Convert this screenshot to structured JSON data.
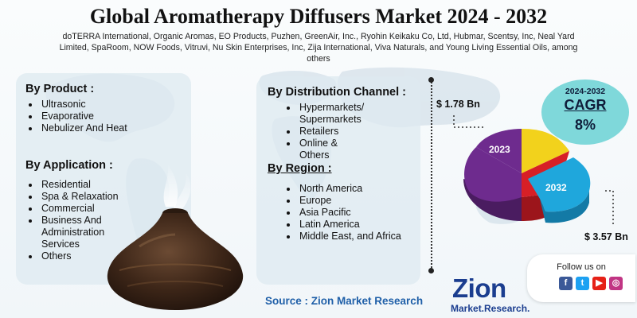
{
  "title": "Global Aromatherapy Diffusers Market 2024 - 2032",
  "key_players": "doTERRA International, Organic Aromas, EO Products, Puzhen, GreenAir, Inc., Ryohin Keikaku Co, Ltd, Hubmar, Scentsy, Inc, Neal Yard Limited, SpaRoom, NOW Foods, Vitruvi, Nu Skin Enterprises, Inc, Zija International, Viva Naturals, and Young Living Essential Oils, among others",
  "by_product": {
    "heading": "By Product :",
    "items": [
      "Ultrasonic",
      "Evaporative",
      "Nebulizer And Heat"
    ]
  },
  "by_application": {
    "heading": "By Application :",
    "items": [
      "Residential",
      "Spa & Relaxation",
      "Commercial",
      "Business And Administration Services",
      "Others"
    ]
  },
  "by_distribution": {
    "heading": "By Distribution Channel :",
    "items": [
      "Hypermarkets/ Supermarkets",
      "Retailers",
      "Online & Others"
    ]
  },
  "by_region": {
    "heading": "By Region :",
    "items": [
      "North America",
      "Europe",
      "Asia Pacific",
      "Latin America",
      "Middle East, and Africa"
    ]
  },
  "market_value_2023": "$ 1.78 Bn",
  "market_value_2032": "$ 3.57 Bn",
  "pie_label_2023": "2023",
  "pie_label_2032": "2032",
  "cagr": {
    "years": "2024-2032",
    "label": "CAGR",
    "value": "8%"
  },
  "follow_us": "Follow us on",
  "social_icons": [
    "facebook-icon",
    "twitter-icon",
    "youtube-icon",
    "instagram-icon"
  ],
  "source": "Source : Zion Market Research",
  "logo": {
    "name": "Zion",
    "sub": "Market.Research."
  },
  "colors": {
    "cagr_bubble": "#7fd8da",
    "source_text": "#1f5fa8",
    "pie_yellow": "#f2d21c",
    "pie_purple": "#6e2b8e",
    "pie_red": "#d71f26",
    "pie_blue": "#1fa7dc"
  }
}
